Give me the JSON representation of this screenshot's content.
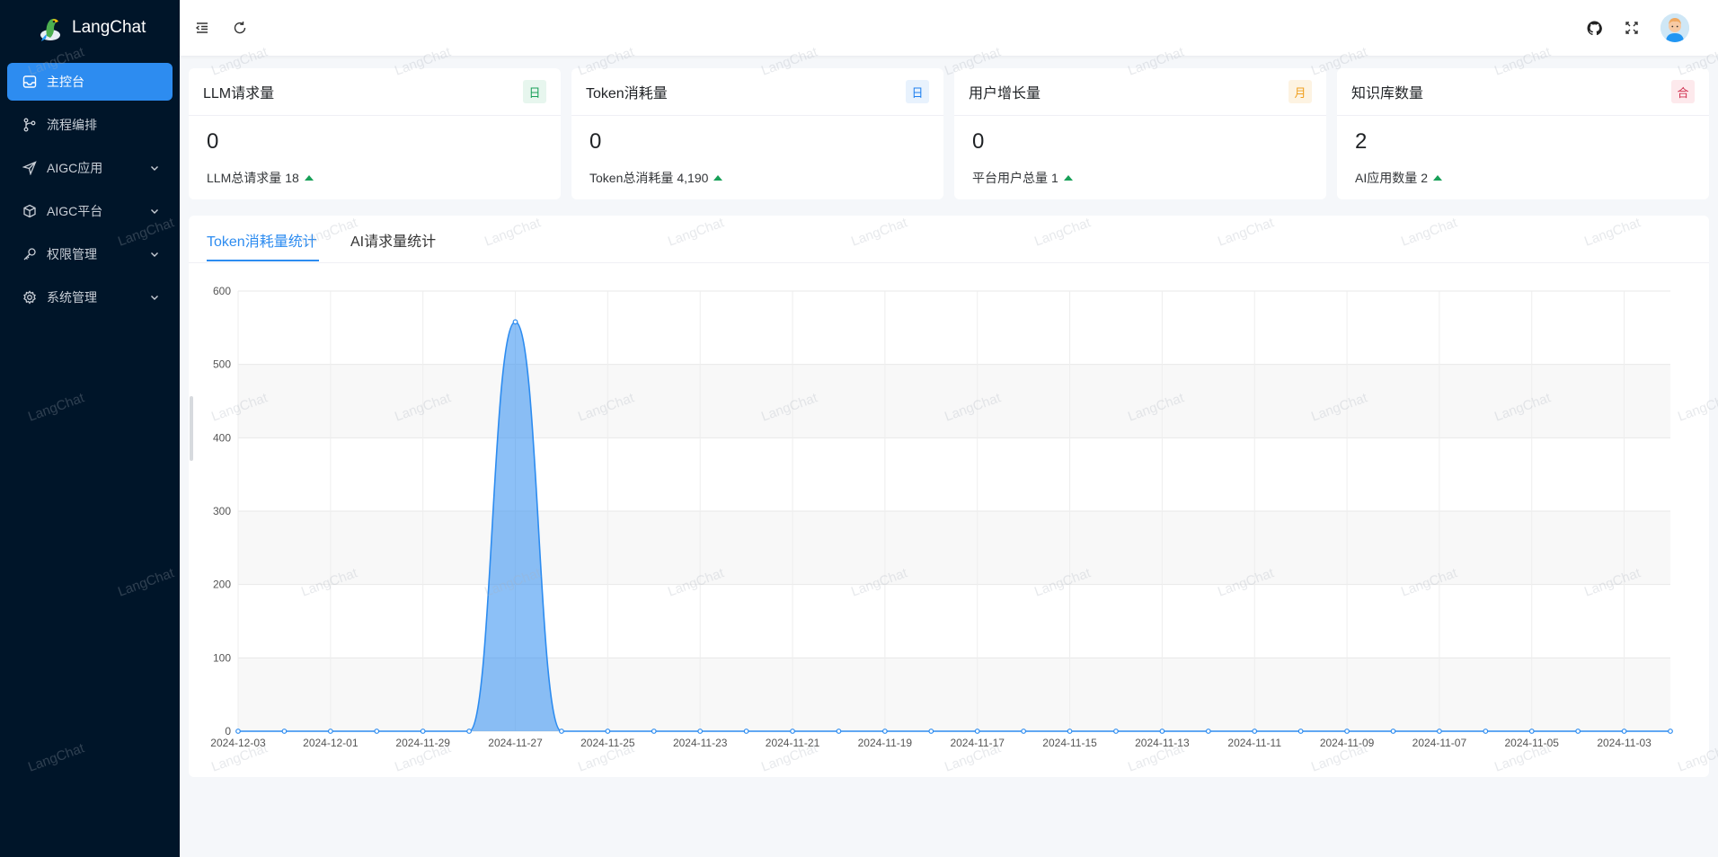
{
  "app": {
    "name": "LangChat"
  },
  "sidebar": {
    "items": [
      {
        "label": "主控台",
        "icon": "dashboard-icon",
        "active": true,
        "expandable": false
      },
      {
        "label": "流程编排",
        "icon": "flow-icon",
        "active": false,
        "expandable": false
      },
      {
        "label": "AIGC应用",
        "icon": "send-icon",
        "active": false,
        "expandable": true
      },
      {
        "label": "AIGC平台",
        "icon": "cube-icon",
        "active": false,
        "expandable": true
      },
      {
        "label": "权限管理",
        "icon": "key-icon",
        "active": false,
        "expandable": true
      },
      {
        "label": "系统管理",
        "icon": "gear-icon",
        "active": false,
        "expandable": true
      }
    ]
  },
  "header": {
    "icons": [
      "menu-fold-icon",
      "refresh-icon",
      "github-icon",
      "fullscreen-icon",
      "avatar"
    ]
  },
  "cards": [
    {
      "title": "LLM请求量",
      "tag": "日",
      "tag_color": "#18a058",
      "value": "0",
      "sub_label": "LLM总请求量",
      "sub_value": "18"
    },
    {
      "title": "Token消耗量",
      "tag": "日",
      "tag_color": "#2080f0",
      "value": "0",
      "sub_label": "Token总消耗量",
      "sub_value": "4,190"
    },
    {
      "title": "用户增长量",
      "tag": "月",
      "tag_color": "#f0a020",
      "value": "0",
      "sub_label": "平台用户总量",
      "sub_value": "1"
    },
    {
      "title": "知识库数量",
      "tag": "合",
      "tag_color": "#d03050",
      "value": "2",
      "sub_label": "AI应用数量",
      "sub_value": "2"
    }
  ],
  "tabs": [
    {
      "label": "Token消耗量统计",
      "active": true
    },
    {
      "label": "AI请求量统计",
      "active": false
    }
  ],
  "watermark": "LangChat",
  "chart_data": {
    "type": "area",
    "x": [
      "2024-12-03",
      "2024-12-02",
      "2024-12-01",
      "2024-11-30",
      "2024-11-29",
      "2024-11-28",
      "2024-11-27",
      "2024-11-26",
      "2024-11-25",
      "2024-11-24",
      "2024-11-23",
      "2024-11-22",
      "2024-11-21",
      "2024-11-20",
      "2024-11-19",
      "2024-11-18",
      "2024-11-17",
      "2024-11-16",
      "2024-11-15",
      "2024-11-14",
      "2024-11-13",
      "2024-11-12",
      "2024-11-11",
      "2024-11-10",
      "2024-11-09",
      "2024-11-08",
      "2024-11-07",
      "2024-11-06",
      "2024-11-05",
      "2024-11-04",
      "2024-11-03",
      "2024-11-02"
    ],
    "series": [
      {
        "values": [
          0,
          0,
          0,
          0,
          0,
          0,
          558,
          0,
          0,
          0,
          0,
          0,
          0,
          0,
          0,
          0,
          0,
          0,
          0,
          0,
          0,
          0,
          0,
          0,
          0,
          0,
          0,
          0,
          0,
          0,
          0,
          0
        ],
        "color": "#2d8cf0"
      }
    ],
    "x_tick_labels": [
      "2024-12-03",
      "2024-12-01",
      "2024-11-29",
      "2024-11-27",
      "2024-11-25",
      "2024-11-23",
      "2024-11-21",
      "2024-11-19",
      "2024-11-17",
      "2024-11-15",
      "2024-11-13",
      "2024-11-11",
      "2024-11-09",
      "2024-11-07",
      "2024-11-05",
      "2024-11-03"
    ],
    "y_ticks": [
      0,
      100,
      200,
      300,
      400,
      500,
      600
    ],
    "ylim": [
      0,
      600
    ],
    "grid": true,
    "smooth": true
  }
}
